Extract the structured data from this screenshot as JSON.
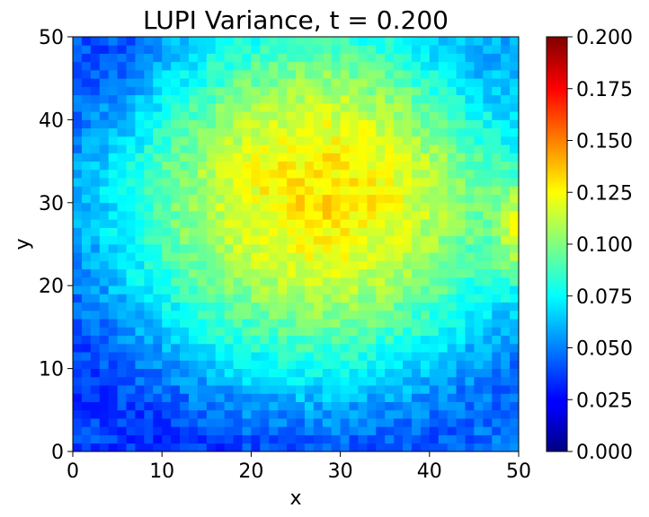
{
  "chart_data": {
    "type": "heatmap",
    "title": "LUPI Variance, t = 0.200",
    "xlabel": "x",
    "ylabel": "y",
    "xlim": [
      0,
      50
    ],
    "ylim": [
      0,
      50
    ],
    "x_ticks": [
      "0",
      "10",
      "20",
      "30",
      "40",
      "50"
    ],
    "y_ticks": [
      "0",
      "10",
      "20",
      "30",
      "40",
      "50"
    ],
    "grid": "50x50",
    "colormap": "jet",
    "colorbar": {
      "min": 0.0,
      "max": 0.2,
      "ticks": [
        "0.000",
        "0.025",
        "0.050",
        "0.075",
        "0.100",
        "0.125",
        "0.150",
        "0.175",
        "0.200"
      ]
    },
    "field_summary": {
      "peak": {
        "x": 28,
        "y": 31,
        "value": 0.13
      },
      "corner_bottom_left": 0.04,
      "corner_top_left": 0.04,
      "corner_bottom_right": 0.05,
      "edge_right_mid": 0.12,
      "center": 0.11
    }
  }
}
